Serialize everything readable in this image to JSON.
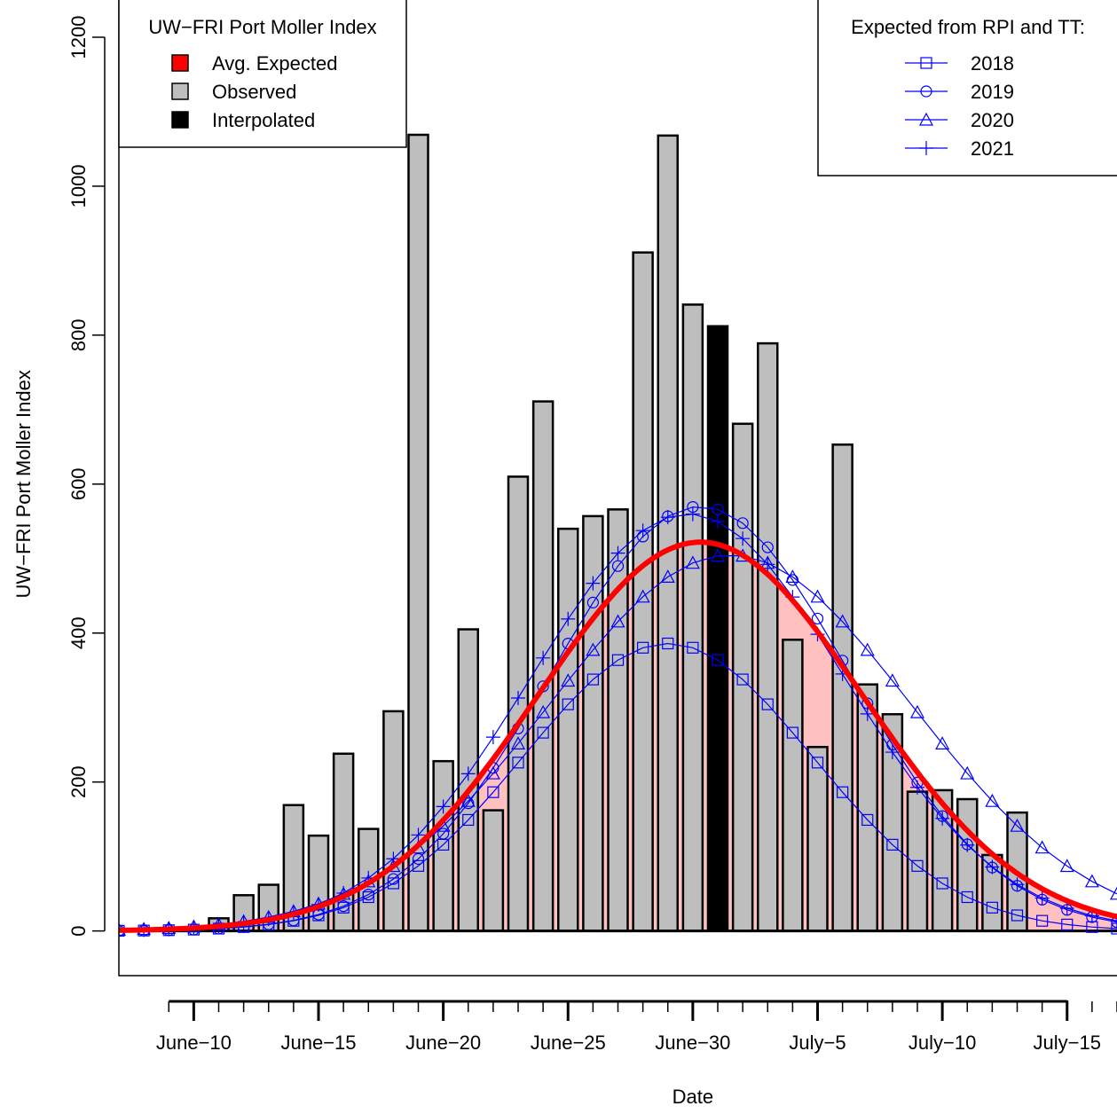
{
  "chart_data": {
    "type": "bar",
    "title": "",
    "xlabel": "Date",
    "ylabel": "UW−FRI Port Moller Index",
    "ylim": [
      -60,
      1250
    ],
    "yticks": [
      0,
      200,
      400,
      600,
      800,
      1000,
      1200
    ],
    "grid": false,
    "x_range_days": [
      -3,
      37
    ],
    "x_minor_tick_start_day": -1,
    "x_minor_tick_end_day": 34,
    "x_tick_labels": [
      {
        "day": 0,
        "label": "June−10"
      },
      {
        "day": 5,
        "label": "June−15"
      },
      {
        "day": 10,
        "label": "June−20"
      },
      {
        "day": 15,
        "label": "June−25"
      },
      {
        "day": 20,
        "label": "June−30"
      },
      {
        "day": 25,
        "label": "July−5"
      },
      {
        "day": 30,
        "label": "July−10"
      },
      {
        "day": 35,
        "label": "July−15"
      }
    ],
    "bars": [
      {
        "day": 1,
        "value": 17,
        "kind": "observed"
      },
      {
        "day": 2,
        "value": 48,
        "kind": "observed"
      },
      {
        "day": 3,
        "value": 62,
        "kind": "observed"
      },
      {
        "day": 4,
        "value": 169,
        "kind": "observed"
      },
      {
        "day": 5,
        "value": 128,
        "kind": "observed"
      },
      {
        "day": 6,
        "value": 238,
        "kind": "observed"
      },
      {
        "day": 7,
        "value": 137,
        "kind": "observed"
      },
      {
        "day": 8,
        "value": 295,
        "kind": "observed"
      },
      {
        "day": 9,
        "value": 1069,
        "kind": "observed"
      },
      {
        "day": 10,
        "value": 228,
        "kind": "observed"
      },
      {
        "day": 11,
        "value": 405,
        "kind": "observed"
      },
      {
        "day": 12,
        "value": 162,
        "kind": "observed"
      },
      {
        "day": 13,
        "value": 610,
        "kind": "observed"
      },
      {
        "day": 14,
        "value": 711,
        "kind": "observed"
      },
      {
        "day": 15,
        "value": 540,
        "kind": "observed"
      },
      {
        "day": 16,
        "value": 557,
        "kind": "observed"
      },
      {
        "day": 17,
        "value": 566,
        "kind": "observed"
      },
      {
        "day": 18,
        "value": 911,
        "kind": "observed"
      },
      {
        "day": 19,
        "value": 1068,
        "kind": "observed"
      },
      {
        "day": 20,
        "value": 841,
        "kind": "observed"
      },
      {
        "day": 21,
        "value": 812,
        "kind": "interpolated"
      },
      {
        "day": 22,
        "value": 681,
        "kind": "observed"
      },
      {
        "day": 23,
        "value": 789,
        "kind": "observed"
      },
      {
        "day": 24,
        "value": 391,
        "kind": "observed"
      },
      {
        "day": 25,
        "value": 247,
        "kind": "observed"
      },
      {
        "day": 26,
        "value": 653,
        "kind": "observed"
      },
      {
        "day": 27,
        "value": 331,
        "kind": "observed"
      },
      {
        "day": 28,
        "value": 291,
        "kind": "observed"
      },
      {
        "day": 29,
        "value": 187,
        "kind": "observed"
      },
      {
        "day": 30,
        "value": 189,
        "kind": "observed"
      },
      {
        "day": 31,
        "value": 177,
        "kind": "observed"
      },
      {
        "day": 32,
        "value": 102,
        "kind": "observed"
      },
      {
        "day": 33,
        "value": 159,
        "kind": "observed"
      }
    ],
    "expected_curves": [
      {
        "name": "2018",
        "marker": "square",
        "peak_day": 19.0,
        "peak": 386,
        "spread": 5.8
      },
      {
        "name": "2019",
        "marker": "circle",
        "peak_day": 20.3,
        "peak": 570,
        "spread": 6.0
      },
      {
        "name": "2020",
        "marker": "triangle",
        "peak_day": 21.5,
        "peak": 505,
        "spread": 7.2
      },
      {
        "name": "2021",
        "marker": "plus",
        "peak_day": 19.8,
        "peak": 560,
        "spread": 6.3
      }
    ],
    "avg_expected": {
      "name": "Avg. Expected",
      "peak_day": 20.3,
      "peak": 522,
      "spread": 6.5
    },
    "colors": {
      "avg_expected_line": "#ff0000",
      "avg_expected_fill": "#ffc0c0",
      "observed_bar": "#bebebe",
      "interpolated_bar": "#000000",
      "expected_series": "#0000ff"
    },
    "legend_left": {
      "title": "UW−FRI Port Moller Index",
      "placement": "top-left",
      "items": [
        {
          "label": "Avg. Expected",
          "color": "#ff0000"
        },
        {
          "label": "Observed",
          "color": "#bebebe"
        },
        {
          "label": "Interpolated",
          "color": "#000000"
        }
      ]
    },
    "legend_right": {
      "title": "Expected from RPI and TT:",
      "placement": "top-right",
      "items": [
        {
          "label": "2018",
          "marker": "square"
        },
        {
          "label": "2019",
          "marker": "circle"
        },
        {
          "label": "2020",
          "marker": "triangle"
        },
        {
          "label": "2021",
          "marker": "plus"
        }
      ]
    }
  }
}
